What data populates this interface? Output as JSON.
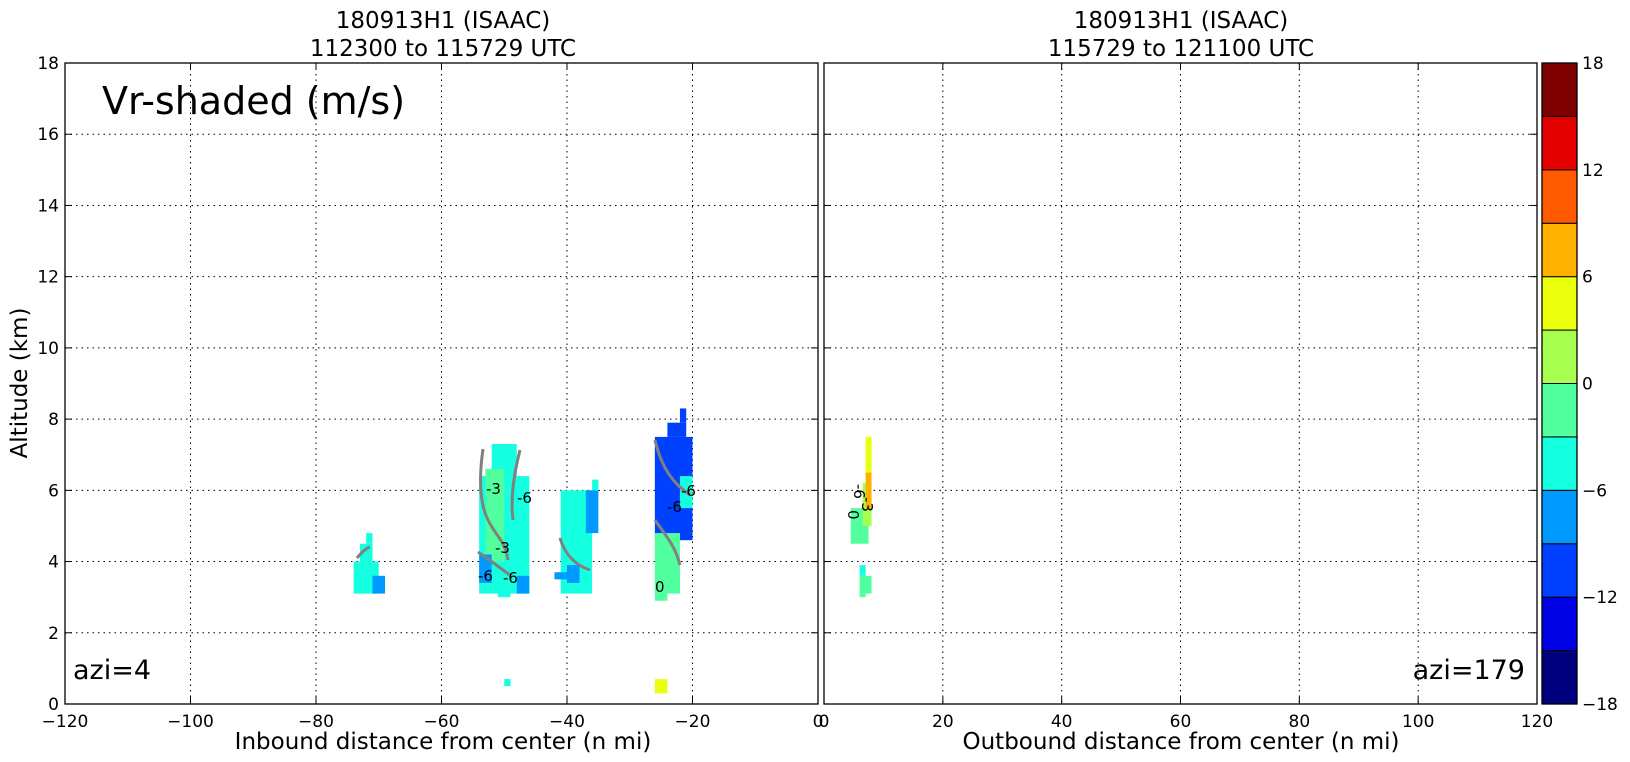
{
  "chart_data": [
    {
      "type": "heatmap",
      "title_line1": "180913H1 (ISAAC)",
      "title_line2": "112300 to 115729 UTC",
      "xlabel": "Inbound distance from center (n mi)",
      "ylabel": "Altitude (km)",
      "xlim": [
        -120,
        0
      ],
      "ylim": [
        0,
        18
      ],
      "xticks": [
        -120,
        -100,
        -80,
        -60,
        -40,
        -20,
        0
      ],
      "yticks": [
        0,
        2,
        4,
        6,
        8,
        10,
        12,
        14,
        16,
        18
      ],
      "xtick_labels": [
        "−120",
        "−100",
        "−80",
        "−60",
        "−40",
        "−20",
        "0"
      ],
      "ytick_labels": [
        "0",
        "2",
        "4",
        "6",
        "8",
        "10",
        "12",
        "14",
        "16",
        "18"
      ],
      "grid": true,
      "annotation": "Vr-shaded (m/s)",
      "azimuth_label": "azi=4",
      "cells": [
        {
          "x": [
            -74,
            -70
          ],
          "y": [
            3.1,
            4.0
          ],
          "v": -5
        },
        {
          "x": [
            -73,
            -71
          ],
          "y": [
            4.0,
            4.5
          ],
          "v": -4
        },
        {
          "x": [
            -72,
            -71
          ],
          "y": [
            4.5,
            4.8
          ],
          "v": -4
        },
        {
          "x": [
            -71,
            -69
          ],
          "y": [
            3.1,
            3.6
          ],
          "v": -8
        },
        {
          "x": [
            -54,
            -46
          ],
          "y": [
            3.1,
            6.4
          ],
          "v": -5
        },
        {
          "x": [
            -52,
            -48
          ],
          "y": [
            6.4,
            7.3
          ],
          "v": -4
        },
        {
          "x": [
            -53,
            -50
          ],
          "y": [
            4.0,
            6.6
          ],
          "v": -2
        },
        {
          "x": [
            -54,
            -52
          ],
          "y": [
            3.4,
            4.2
          ],
          "v": -8
        },
        {
          "x": [
            -48,
            -46
          ],
          "y": [
            3.1,
            3.6
          ],
          "v": -7
        },
        {
          "x": [
            -51,
            -49
          ],
          "y": [
            3.0,
            3.2
          ],
          "v": -5
        },
        {
          "x": [
            -41,
            -36
          ],
          "y": [
            3.1,
            6.0
          ],
          "v": -5
        },
        {
          "x": [
            -37,
            -35
          ],
          "y": [
            4.8,
            6.0
          ],
          "v": -8
        },
        {
          "x": [
            -36,
            -35
          ],
          "y": [
            6.0,
            6.3
          ],
          "v": -5
        },
        {
          "x": [
            -40,
            -38
          ],
          "y": [
            3.4,
            3.9
          ],
          "v": -8
        },
        {
          "x": [
            -42,
            -40
          ],
          "y": [
            3.5,
            3.7
          ],
          "v": -8
        },
        {
          "x": [
            -26,
            -20
          ],
          "y": [
            4.6,
            7.5
          ],
          "v": -10
        },
        {
          "x": [
            -24,
            -21
          ],
          "y": [
            7.5,
            7.9
          ],
          "v": -12
        },
        {
          "x": [
            -22,
            -21
          ],
          "y": [
            7.9,
            8.3
          ],
          "v": -12
        },
        {
          "x": [
            -26,
            -22
          ],
          "y": [
            3.1,
            4.8
          ],
          "v": -2
        },
        {
          "x": [
            -22,
            -20
          ],
          "y": [
            5.5,
            6.4
          ],
          "v": -5
        },
        {
          "x": [
            -26,
            -24
          ],
          "y": [
            2.9,
            3.1
          ],
          "v": -2
        },
        {
          "x": [
            -50,
            -49
          ],
          "y": [
            0.5,
            0.7
          ],
          "v": -5
        },
        {
          "x": [
            -26,
            -24
          ],
          "y": [
            0.3,
            0.7
          ],
          "v": 5
        }
      ]
    },
    {
      "type": "heatmap",
      "title_line1": "180913H1 (ISAAC)",
      "title_line2": "115729 to 121100 UTC",
      "xlabel": "Outbound distance from center (n mi)",
      "ylabel": "",
      "xlim": [
        0,
        120
      ],
      "ylim": [
        0,
        18
      ],
      "xticks": [
        0,
        20,
        40,
        60,
        80,
        100,
        120
      ],
      "yticks": [
        0,
        2,
        4,
        6,
        8,
        10,
        12,
        14,
        16,
        18
      ],
      "xtick_labels": [
        "0",
        "20",
        "40",
        "60",
        "80",
        "100",
        "120"
      ],
      "grid": true,
      "azimuth_label": "azi=179",
      "cells": [
        {
          "x": [
            4.5,
            7.5
          ],
          "y": [
            4.5,
            5.5
          ],
          "v": -2
        },
        {
          "x": [
            6.5,
            8
          ],
          "y": [
            5.0,
            6.2
          ],
          "v": 2
        },
        {
          "x": [
            7,
            8
          ],
          "y": [
            6.2,
            7.5
          ],
          "v": 5
        },
        {
          "x": [
            7,
            8
          ],
          "y": [
            5.5,
            6.5
          ],
          "v": 8
        },
        {
          "x": [
            6,
            8
          ],
          "y": [
            3.1,
            3.6
          ],
          "v": -2
        },
        {
          "x": [
            6,
            7
          ],
          "y": [
            3.6,
            3.9
          ],
          "v": -4
        },
        {
          "x": [
            6,
            7
          ],
          "y": [
            3.0,
            3.1
          ],
          "v": -2
        }
      ]
    }
  ],
  "colorbar": {
    "levels": [
      -18,
      -15,
      -12,
      -9,
      -6,
      -3,
      0,
      3,
      6,
      9,
      12,
      15,
      18
    ],
    "colors": [
      "#00007f",
      "#0000e5",
      "#0040ff",
      "#0099ff",
      "#15ffe1",
      "#52ff9e",
      "#a6ff4f",
      "#eaff0c",
      "#ffb000",
      "#ff5a00",
      "#e50000",
      "#7f0000"
    ],
    "tick_labels": [
      "−18",
      "−12",
      "−6",
      "0",
      "6",
      "12",
      "18"
    ],
    "tick_values": [
      -18,
      -12,
      -6,
      0,
      6,
      12,
      18
    ]
  },
  "contour_labels": {
    "left": [
      "-3",
      "-6",
      "-3",
      "-6",
      "-6",
      "-6",
      "-6",
      "0"
    ],
    "right": [
      "-3",
      "-6",
      "0"
    ]
  }
}
